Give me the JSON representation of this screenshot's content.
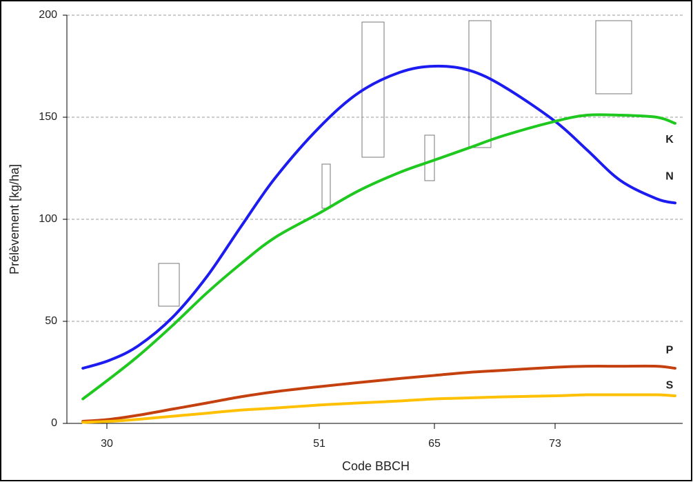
{
  "chart_data": {
    "type": "line",
    "xlabel": "Code BBCH",
    "ylabel": "Prélèvement [kg/ha]",
    "x": [
      27.6,
      30.3,
      33.1,
      36.5,
      39.9,
      43.2,
      46.6,
      51,
      55.8,
      60.8,
      65,
      67.3,
      69.6,
      73,
      75.1,
      77.3,
      79.7,
      80.9
    ],
    "series": [
      {
        "name": "N",
        "color": "#1c1cf0",
        "values": [
          27,
          31,
          38,
          52,
          72,
          96,
          120,
          145,
          162,
          172,
          175,
          173,
          165,
          148,
          134,
          119,
          110,
          108
        ]
      },
      {
        "name": "K",
        "color": "#1ec81e",
        "values": [
          12,
          22,
          33,
          48,
          64,
          78,
          91,
          103,
          114,
          123,
          129,
          135,
          141,
          148,
          151,
          151,
          150,
          147
        ]
      },
      {
        "name": "P",
        "color": "#c4400e",
        "values": [
          1,
          2,
          4,
          7,
          10,
          13,
          15.5,
          18,
          20,
          22,
          23.5,
          25,
          26,
          27.5,
          28,
          28,
          28,
          27
        ]
      },
      {
        "name": "S",
        "color": "#ffc000",
        "values": [
          0.5,
          1,
          2,
          3.5,
          5,
          6.5,
          7.5,
          9,
          10,
          11,
          12,
          12.5,
          13,
          13.5,
          14,
          14,
          14,
          13.5
        ]
      }
    ],
    "xlim": [
      26,
      81.4
    ],
    "xticks": [
      30,
      51,
      65,
      73
    ],
    "ylim": [
      0,
      200
    ],
    "yticks": [
      0,
      50,
      100,
      150,
      200
    ],
    "grid": true
  }
}
